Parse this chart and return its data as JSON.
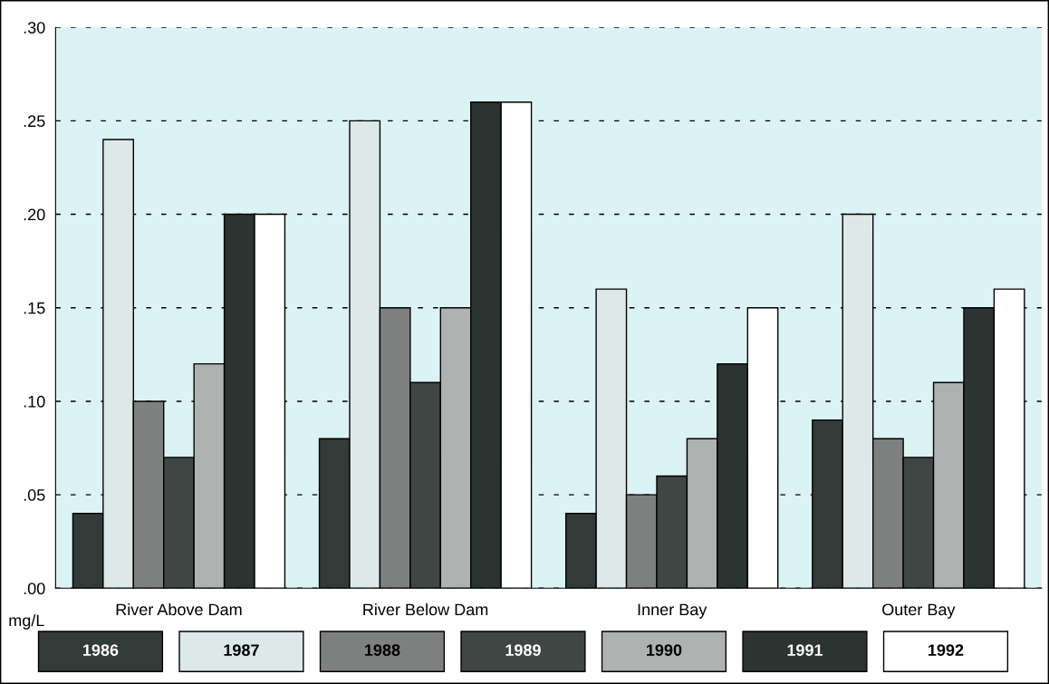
{
  "chart_data": {
    "type": "bar",
    "ylabel": "mg/L",
    "categories": [
      "River Above Dam",
      "River Below Dam",
      "Inner Bay",
      "Outer Bay"
    ],
    "series": [
      {
        "name": "1986",
        "color": "#333b38",
        "values": [
          0.04,
          0.08,
          0.04,
          0.09
        ]
      },
      {
        "name": "1987",
        "color": "#dde9e8",
        "values": [
          0.24,
          0.25,
          0.16,
          0.2
        ]
      },
      {
        "name": "1988",
        "color": "#7d807e",
        "values": [
          0.1,
          0.15,
          0.05,
          0.08
        ]
      },
      {
        "name": "1989",
        "color": "#3f4644",
        "values": [
          0.07,
          0.11,
          0.06,
          0.07
        ]
      },
      {
        "name": "1990",
        "color": "#aeb2b0",
        "values": [
          0.12,
          0.15,
          0.08,
          0.11
        ]
      },
      {
        "name": "1991",
        "color": "#2c3431",
        "values": [
          0.2,
          0.26,
          0.12,
          0.15
        ]
      },
      {
        "name": "1992",
        "color": "#ffffff",
        "values": [
          0.2,
          0.26,
          0.15,
          0.16
        ]
      }
    ],
    "ylim": [
      0,
      0.3
    ],
    "yticks": [
      {
        "value": 0,
        "label": ".00"
      },
      {
        "value": 0.05,
        "label": ".05"
      },
      {
        "value": 0.1,
        "label": ".10"
      },
      {
        "value": 0.15,
        "label": ".15"
      },
      {
        "value": 0.2,
        "label": ".20"
      },
      {
        "value": 0.25,
        "label": ".25"
      },
      {
        "value": 0.3,
        "label": ".30"
      }
    ],
    "grid": "y",
    "legend": "bottom"
  }
}
